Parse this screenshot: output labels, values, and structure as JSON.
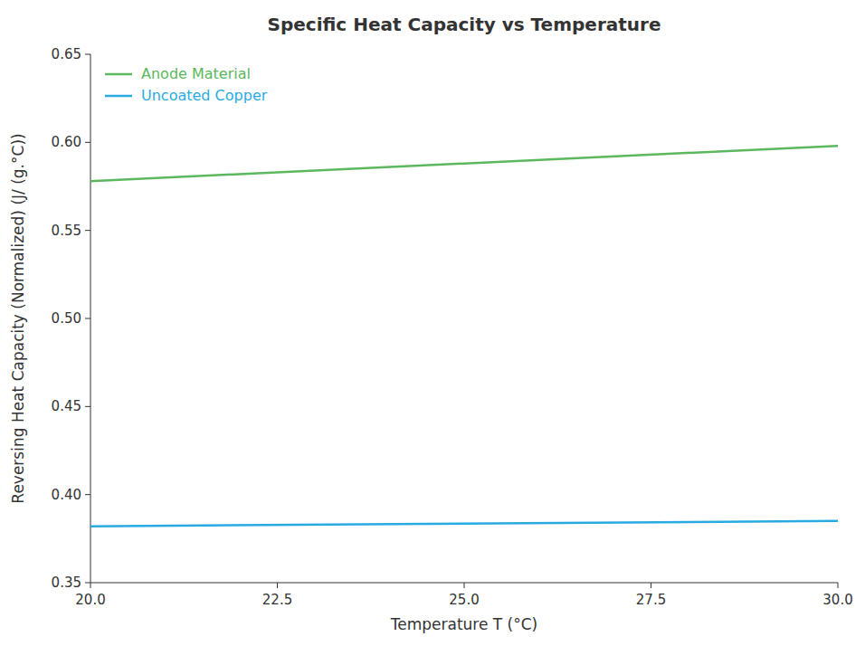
{
  "chart_data": {
    "type": "line",
    "title": "Specific Heat Capacity vs Temperature",
    "x_label": "Temperature T (°C)",
    "y_label": "Reversing Heat Capacity (Normalized) (J/ (g.°C))",
    "x": [
      20.0,
      30.0
    ],
    "series": [
      {
        "name": "Anode Material",
        "color": "#5cb85c",
        "values": [
          0.578,
          0.598
        ]
      },
      {
        "name": "Uncoated Copper",
        "color": "#29abe2",
        "values": [
          0.382,
          0.385
        ]
      }
    ],
    "xlim": [
      20.0,
      30.0
    ],
    "ylim": [
      0.35,
      0.65
    ],
    "xticks": [
      {
        "value": 20.0,
        "label": "20.0"
      },
      22.5,
      {
        "value": 25.0,
        "label": "25.0"
      },
      27.5,
      {
        "value": 30.0,
        "label": "30.0"
      }
    ],
    "yticks": [
      0.35,
      {
        "value": 0.4,
        "label": "0.40"
      },
      0.45,
      {
        "value": 0.5,
        "label": "0.50"
      },
      0.55,
      {
        "value": 0.6,
        "label": "0.60"
      },
      0.65
    ],
    "grid": false,
    "legend": "upper-left"
  }
}
